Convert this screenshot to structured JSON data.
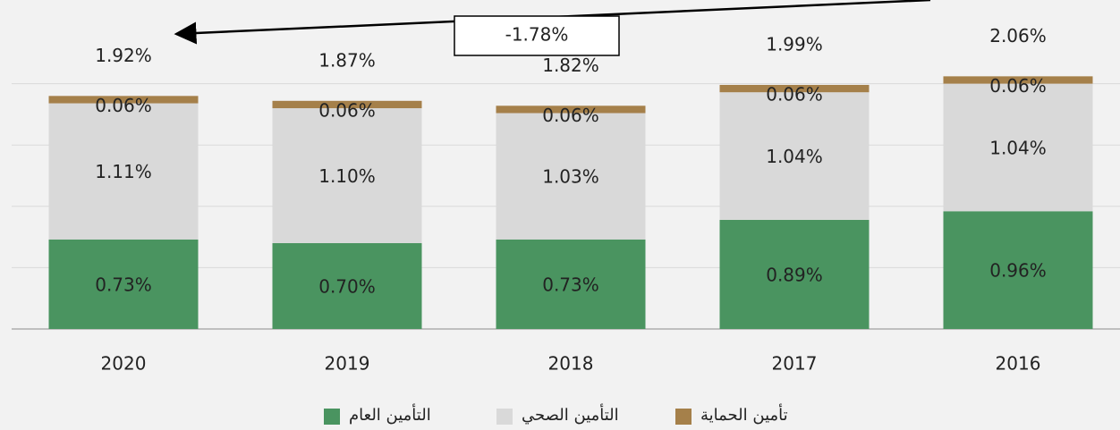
{
  "chart_data": {
    "type": "stacked_bar",
    "categories": [
      "2020",
      "2019",
      "2018",
      "2017",
      "2016"
    ],
    "series": [
      {
        "name": "التأمين العام",
        "color": "#4a9460",
        "values": [
          0.73,
          0.7,
          0.73,
          0.89,
          0.96
        ],
        "value_labels": [
          "0.73%",
          "0.70%",
          "0.73%",
          "0.89%",
          "0.96%"
        ]
      },
      {
        "name": "التأمين الصحي",
        "color": "#d9d9d9",
        "values": [
          1.11,
          1.1,
          1.03,
          1.04,
          1.04
        ],
        "value_labels": [
          "1.11%",
          "1.10%",
          "1.03%",
          "1.04%",
          "1.04%"
        ]
      },
      {
        "name": "تأمين الحماية",
        "color": "#a5804a",
        "values": [
          0.06,
          0.06,
          0.06,
          0.06,
          0.06
        ],
        "value_labels": [
          "0.06%",
          "0.06%",
          "0.06%",
          "0.06%",
          "0.06%"
        ]
      }
    ],
    "total_labels": [
      "1.92%",
      "1.87%",
      "1.82%",
      "1.99%",
      "2.06%"
    ],
    "annotation": "-1.78%",
    "ylim": [
      0,
      2.5
    ],
    "yticks": [
      0,
      0.5,
      1,
      1.5,
      2
    ],
    "grid": true
  }
}
